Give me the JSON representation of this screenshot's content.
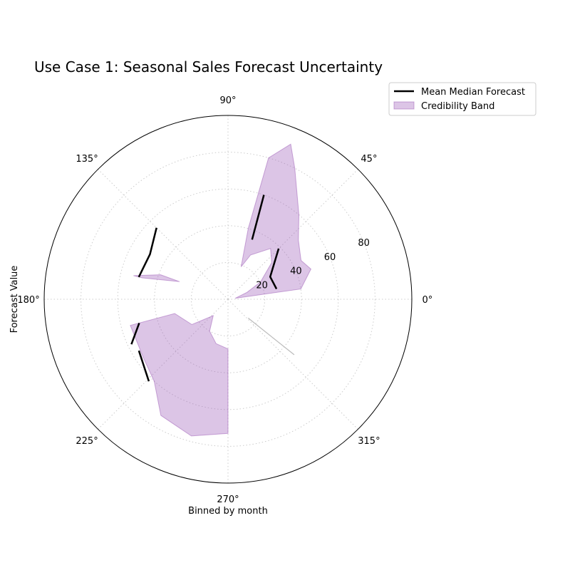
{
  "chart_data": {
    "type": "polar-line-band",
    "title": "Use Case 1: Seasonal Sales Forecast Uncertainty",
    "xlabel": "Binned by month",
    "ylabel": "Forecast Value",
    "angle_ticks_deg": [
      0,
      45,
      90,
      135,
      180,
      225,
      270,
      315
    ],
    "angle_tick_labels": [
      "0°",
      "45°",
      "90°",
      "135°",
      "180°",
      "225°",
      "270°",
      "315°"
    ],
    "radial_ticks": [
      20,
      40,
      60,
      80
    ],
    "radial_tick_labels": [
      "20",
      "40",
      "60",
      "80"
    ],
    "rlim": [
      0,
      100
    ],
    "grid": true,
    "legend_position": "upper-right-outside",
    "series": [
      {
        "name": "Mean Median Forecast",
        "kind": "line",
        "color": "#000000",
        "segments": [
          [
            {
              "theta": 68,
              "r": 35
            },
            {
              "theta": 71,
              "r": 60
            }
          ],
          [
            {
              "theta": 12,
              "r": 27
            },
            {
              "theta": 28,
              "r": 26
            },
            {
              "theta": 45,
              "r": 39
            }
          ],
          [
            {
              "theta": 210,
              "r": 56
            },
            {
              "theta": 226,
              "r": 62
            }
          ],
          [
            {
              "theta": 135,
              "r": 55
            },
            {
              "theta": 150,
              "r": 49
            },
            {
              "theta": 166,
              "r": 50
            }
          ],
          [
            {
              "theta": 195,
              "r": 50
            },
            {
              "theta": 205,
              "r": 58
            }
          ]
        ]
      },
      {
        "name": "Credibility Band",
        "kind": "band",
        "color": "#9b59b6",
        "groups": [
          {
            "theta": [
              8,
              20,
              28,
              40,
              50,
              63,
              68,
              74
            ],
            "lower": [
              4,
              11,
              20,
              31,
              36,
              27,
              19,
              40
            ],
            "upper": [
              40,
              48,
              45,
              50,
              60,
              80,
              91,
              80
            ]
          },
          {
            "theta": [
              195,
              215,
              228,
              240,
              255,
              270
            ],
            "lower": [
              30,
              24,
              12,
              20,
              25,
              27
            ],
            "upper": [
              55,
              56,
              60,
              73,
              77,
              73
            ]
          },
          {
            "theta": [
              160,
              166
            ],
            "lower": [
              28,
              48
            ],
            "upper": [
              39,
              53
            ]
          }
        ]
      },
      {
        "name": "",
        "kind": "line",
        "color": "#bbbbbb",
        "segments": [
          [
            {
              "theta": 317,
              "r": 15
            },
            {
              "theta": 320,
              "r": 47
            }
          ]
        ]
      }
    ]
  }
}
